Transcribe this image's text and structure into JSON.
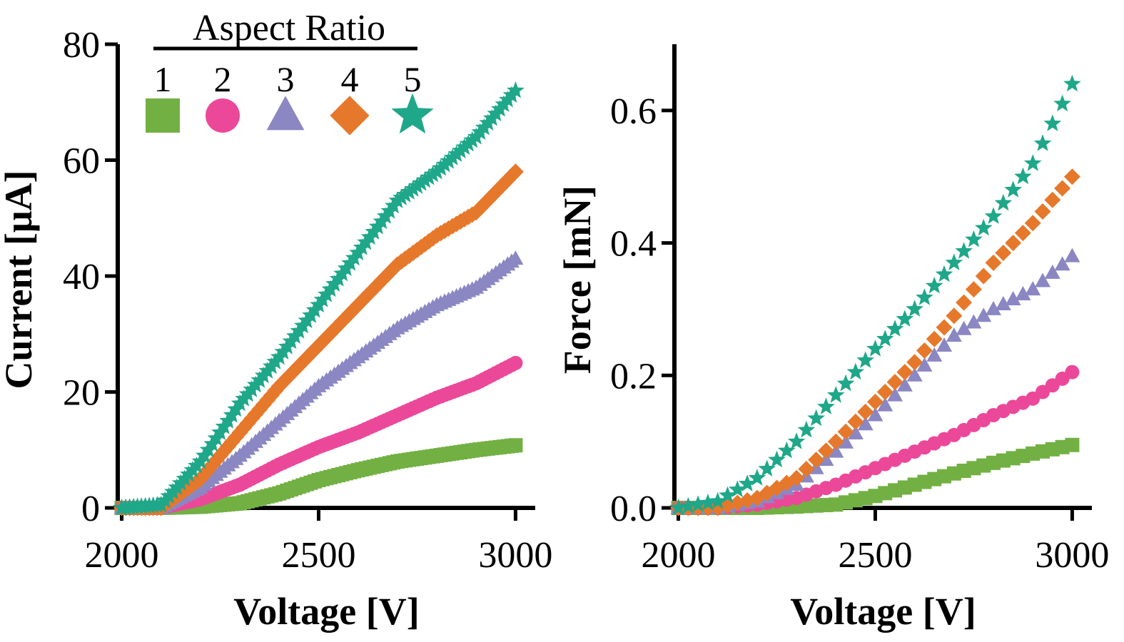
{
  "legend": {
    "title": "Aspect Ratio",
    "entries": [
      {
        "label": "1",
        "color": "#72b043",
        "marker": "square"
      },
      {
        "label": "2",
        "color": "#ec4899",
        "marker": "circle"
      },
      {
        "label": "3",
        "color": "#8b87c3",
        "marker": "triangle"
      },
      {
        "label": "4",
        "color": "#e6782b",
        "marker": "diamond"
      },
      {
        "label": "5",
        "color": "#1fa789",
        "marker": "star"
      }
    ]
  },
  "chart_data": [
    {
      "type": "scatter",
      "title": "",
      "xlabel": "Voltage [V]",
      "ylabel": "Current [μA]",
      "xlim": [
        1990,
        3050
      ],
      "ylim": [
        0,
        80
      ],
      "xticks": [
        2000,
        2500,
        3000
      ],
      "yticks": [
        0,
        20,
        40,
        60,
        80
      ],
      "xtick_labels": [
        "2000",
        "2500",
        "3000"
      ],
      "ytick_labels": [
        "0",
        "20",
        "40",
        "60",
        "80"
      ],
      "step": 10,
      "series": [
        {
          "name": "1",
          "marker": "square",
          "color": "#72b043",
          "points": [
            [
              2000,
              0
            ],
            [
              2100,
              0
            ],
            [
              2200,
              0.2
            ],
            [
              2300,
              0.8
            ],
            [
              2400,
              2.5
            ],
            [
              2500,
              4.8
            ],
            [
              2600,
              6.5
            ],
            [
              2700,
              8
            ],
            [
              2800,
              9
            ],
            [
              2900,
              10
            ],
            [
              3000,
              10.8
            ]
          ]
        },
        {
          "name": "2",
          "marker": "circle",
          "color": "#ec4899",
          "points": [
            [
              2000,
              0
            ],
            [
              2100,
              0
            ],
            [
              2200,
              1.5
            ],
            [
              2300,
              4
            ],
            [
              2400,
              7.5
            ],
            [
              2500,
              10.5
            ],
            [
              2600,
              13
            ],
            [
              2700,
              16
            ],
            [
              2800,
              19
            ],
            [
              2900,
              21.5
            ],
            [
              3000,
              25
            ]
          ]
        },
        {
          "name": "3",
          "marker": "triangle",
          "color": "#8b87c3",
          "points": [
            [
              2000,
              0
            ],
            [
              2100,
              0
            ],
            [
              2200,
              3.5
            ],
            [
              2300,
              9
            ],
            [
              2400,
              15
            ],
            [
              2500,
              21
            ],
            [
              2600,
              26
            ],
            [
              2700,
              31
            ],
            [
              2800,
              35
            ],
            [
              2900,
              38
            ],
            [
              3000,
              43
            ]
          ]
        },
        {
          "name": "4",
          "marker": "diamond",
          "color": "#e6782b",
          "points": [
            [
              2000,
              0
            ],
            [
              2100,
              0
            ],
            [
              2200,
              5
            ],
            [
              2300,
              13
            ],
            [
              2400,
              21
            ],
            [
              2500,
              28
            ],
            [
              2600,
              35
            ],
            [
              2700,
              42
            ],
            [
              2800,
              47
            ],
            [
              2900,
              51
            ],
            [
              3000,
              58
            ]
          ]
        },
        {
          "name": "5",
          "marker": "star",
          "color": "#1fa789",
          "points": [
            [
              2000,
              0
            ],
            [
              2100,
              0.5
            ],
            [
              2200,
              8
            ],
            [
              2300,
              18
            ],
            [
              2400,
              26
            ],
            [
              2500,
              35
            ],
            [
              2600,
              44
            ],
            [
              2700,
              53
            ],
            [
              2800,
              58
            ],
            [
              2900,
              64
            ],
            [
              3000,
              72
            ]
          ]
        }
      ]
    },
    {
      "type": "scatter",
      "title": "",
      "xlabel": "Voltage [V]",
      "ylabel": "Force [mN]",
      "xlim": [
        1990,
        3050
      ],
      "ylim": [
        0,
        0.7
      ],
      "xticks": [
        2000,
        2500,
        3000
      ],
      "yticks": [
        0.0,
        0.2,
        0.4,
        0.6
      ],
      "xtick_labels": [
        "2000",
        "2500",
        "3000"
      ],
      "ytick_labels": [
        "0.0",
        "0.2",
        "0.4",
        "0.6"
      ],
      "step": 25,
      "series": [
        {
          "name": "1",
          "marker": "square",
          "color": "#72b043",
          "points": [
            [
              2000,
              0
            ],
            [
              2100,
              0
            ],
            [
              2200,
              0
            ],
            [
              2300,
              0.002
            ],
            [
              2400,
              0.005
            ],
            [
              2500,
              0.018
            ],
            [
              2600,
              0.035
            ],
            [
              2700,
              0.052
            ],
            [
              2800,
              0.068
            ],
            [
              2900,
              0.082
            ],
            [
              3000,
              0.095
            ]
          ]
        },
        {
          "name": "2",
          "marker": "circle",
          "color": "#ec4899",
          "points": [
            [
              2000,
              0
            ],
            [
              2100,
              0
            ],
            [
              2200,
              0.005
            ],
            [
              2300,
              0.015
            ],
            [
              2400,
              0.035
            ],
            [
              2500,
              0.06
            ],
            [
              2600,
              0.085
            ],
            [
              2700,
              0.11
            ],
            [
              2800,
              0.14
            ],
            [
              2900,
              0.165
            ],
            [
              3000,
              0.205
            ]
          ]
        },
        {
          "name": "3",
          "marker": "triangle",
          "color": "#8b87c3",
          "points": [
            [
              2000,
              0
            ],
            [
              2100,
              0
            ],
            [
              2200,
              0.01
            ],
            [
              2300,
              0.035
            ],
            [
              2400,
              0.085
            ],
            [
              2500,
              0.14
            ],
            [
              2600,
              0.2
            ],
            [
              2700,
              0.26
            ],
            [
              2800,
              0.3
            ],
            [
              2900,
              0.33
            ],
            [
              3000,
              0.38
            ]
          ]
        },
        {
          "name": "4",
          "marker": "diamond",
          "color": "#e6782b",
          "points": [
            [
              2000,
              0
            ],
            [
              2100,
              0
            ],
            [
              2200,
              0.015
            ],
            [
              2300,
              0.045
            ],
            [
              2400,
              0.1
            ],
            [
              2500,
              0.16
            ],
            [
              2600,
              0.22
            ],
            [
              2700,
              0.29
            ],
            [
              2800,
              0.37
            ],
            [
              2900,
              0.43
            ],
            [
              3000,
              0.5
            ]
          ]
        },
        {
          "name": "5",
          "marker": "star",
          "color": "#1fa789",
          "points": [
            [
              2000,
              0
            ],
            [
              2100,
              0.01
            ],
            [
              2200,
              0.045
            ],
            [
              2300,
              0.1
            ],
            [
              2400,
              0.17
            ],
            [
              2500,
              0.24
            ],
            [
              2600,
              0.3
            ],
            [
              2700,
              0.37
            ],
            [
              2800,
              0.44
            ],
            [
              2900,
              0.52
            ],
            [
              3000,
              0.64
            ]
          ]
        }
      ]
    }
  ]
}
